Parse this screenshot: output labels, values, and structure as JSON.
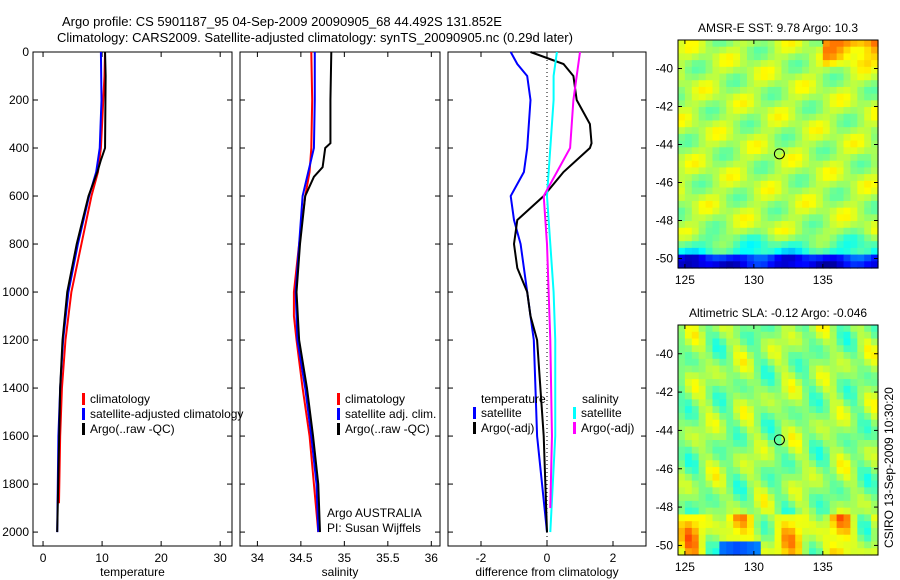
{
  "title_line1": "Argo profile: CS 5901187_95 04-Sep-2009 20090905_68 44.492S 131.852E",
  "title_line2": "Climatology: CARS2009. Satellite-adjusted climatology: synTS_20090905.nc (0.29d later)",
  "side_label": "CSIRO 13-Sep-2009 10:30:20",
  "colors": {
    "red": "#ff0000",
    "blue": "#0000ff",
    "black": "#000000",
    "cyan": "#00ffff",
    "magenta": "#ff00ff"
  },
  "chart_data": [
    {
      "type": "line",
      "xlabel": "temperature",
      "ylabel": "",
      "xlim": [
        -1.7,
        32
      ],
      "ylim": [
        2058,
        0
      ],
      "xticks": [
        0,
        10,
        20,
        30
      ],
      "yticks": [
        0,
        200,
        400,
        600,
        800,
        1000,
        1200,
        1400,
        1600,
        1800,
        2000
      ],
      "legend": [
        "climatology",
        "satellite-adjusted climatology",
        "Argo(..raw -QC)"
      ],
      "series": [
        {
          "name": "climatology",
          "color": "#ff0000",
          "x": [
            10.5,
            10.4,
            10.2,
            9.8,
            9.3,
            8.2,
            6.5,
            4.8,
            3.8,
            3.2,
            2.9,
            2.7
          ],
          "y": [
            0,
            100,
            200,
            400,
            500,
            600,
            800,
            1000,
            1200,
            1400,
            1600,
            1880
          ]
        },
        {
          "name": "satellite-adjusted climatology",
          "color": "#0000ff",
          "x": [
            9.8,
            9.9,
            9.6,
            9.0,
            7.8,
            5.9,
            4.3,
            3.4,
            2.9,
            2.6,
            2.4
          ],
          "y": [
            0,
            200,
            400,
            500,
            600,
            800,
            1000,
            1200,
            1400,
            1600,
            2000
          ]
        },
        {
          "name": "Argo(..raw -QC)",
          "color": "#000000",
          "x": [
            10.5,
            10.6,
            10.5,
            9.8,
            9.2,
            7.7,
            5.7,
            4.1,
            3.3,
            2.9,
            2.4
          ],
          "y": [
            0,
            100,
            400,
            450,
            500,
            600,
            800,
            1000,
            1200,
            1400,
            2000
          ]
        }
      ]
    },
    {
      "type": "line",
      "xlabel": "salinity",
      "xlim": [
        33.8,
        36.1
      ],
      "ylim": [
        2058,
        0
      ],
      "xticks": [
        34,
        34.5,
        35,
        35.5,
        36
      ],
      "xticklabels": [
        "34",
        "34.5",
        "35",
        "35.5",
        "36"
      ],
      "legend": [
        "climatology",
        "satellite adj. clim.",
        "Argo(..raw -QC)"
      ],
      "annotation": [
        "Argo AUSTRALIA",
        "PI: Susan Wijffels"
      ],
      "series": [
        {
          "name": "climatology",
          "color": "#ff0000",
          "x": [
            34.62,
            34.63,
            34.62,
            34.6,
            34.55,
            34.48,
            34.42,
            34.42,
            34.45,
            34.52,
            34.6,
            34.65,
            34.7
          ],
          "y": [
            0,
            200,
            400,
            500,
            600,
            800,
            1000,
            1100,
            1200,
            1400,
            1600,
            1800,
            2000
          ]
        },
        {
          "name": "satellite adj. clim.",
          "color": "#0000ff",
          "x": [
            34.66,
            34.66,
            34.65,
            34.52,
            34.48,
            34.44,
            34.46,
            34.55,
            34.62,
            34.68,
            34.7
          ],
          "y": [
            0,
            200,
            400,
            600,
            800,
            1000,
            1200,
            1400,
            1600,
            1800,
            2000
          ]
        },
        {
          "name": "Argo(..raw -QC)",
          "color": "#000000",
          "x": [
            34.85,
            34.84,
            34.84,
            34.78,
            34.75,
            34.65,
            34.55,
            34.49,
            34.45,
            34.48,
            34.57,
            34.64,
            34.7,
            34.72
          ],
          "y": [
            0,
            200,
            380,
            400,
            480,
            520,
            600,
            800,
            1000,
            1200,
            1400,
            1600,
            1800,
            2000
          ]
        }
      ]
    },
    {
      "type": "line",
      "xlabel": "difference from climatology",
      "xlim": [
        -3,
        3
      ],
      "ylim": [
        2058,
        0
      ],
      "xticks": [
        -2,
        0,
        2
      ],
      "xticklabels": [
        "-2",
        "0",
        "2"
      ],
      "legend_headers": [
        "temperature",
        "salinity"
      ],
      "legend": [
        "satellite",
        "Argo(-adj)",
        "satellite",
        "Argo(-adj)"
      ],
      "series": [
        {
          "name": "temperature satellite",
          "color": "#0000ff",
          "x": [
            -1.1,
            -0.9,
            -0.6,
            -0.5,
            -0.6,
            -0.7,
            -1.1,
            -1.0,
            -0.8,
            -0.6,
            -0.4,
            -0.3,
            0
          ],
          "y": [
            0,
            50,
            100,
            200,
            400,
            500,
            600,
            700,
            800,
            1000,
            1200,
            1600,
            2000
          ]
        },
        {
          "name": "temperature Argo(-adj)",
          "color": "#000000",
          "x": [
            -0.5,
            0.5,
            0.8,
            0.9,
            1.3,
            1.35,
            1.3,
            0.5,
            -0.1,
            -0.9,
            -1.0,
            -0.9,
            -0.6,
            -0.5,
            -0.3,
            -0.1,
            0
          ],
          "y": [
            0,
            50,
            100,
            200,
            300,
            380,
            400,
            500,
            600,
            700,
            800,
            900,
            1000,
            1100,
            1200,
            1600,
            2000
          ]
        },
        {
          "name": "salinity satellite",
          "color": "#00ffff",
          "x": [
            0.3,
            0.2,
            0.2,
            0.1,
            0.0,
            0.1,
            0.2,
            0.25,
            0.25,
            0.1
          ],
          "y": [
            0,
            100,
            200,
            400,
            600,
            800,
            1000,
            1200,
            1600,
            2000
          ]
        },
        {
          "name": "salinity Argo(-adj)",
          "color": "#ff00ff",
          "x": [
            1.0,
            0.9,
            0.8,
            0.7,
            0.3,
            -0.1,
            0.0,
            0.1,
            0.15,
            0.1
          ],
          "y": [
            0,
            100,
            200,
            400,
            500,
            600,
            800,
            1200,
            1600,
            1900
          ]
        }
      ]
    },
    {
      "type": "heatmap",
      "title": "AMSR-E SST: 9.78 Argo: 10.3",
      "xlim": [
        124.5,
        139
      ],
      "ylim": [
        -50.5,
        -38.5
      ],
      "xticks": [
        125,
        130,
        135
      ],
      "yticks": [
        -40,
        -42,
        -44,
        -46,
        -48,
        -50
      ],
      "marker": [
        131.852,
        -44.492
      ]
    },
    {
      "type": "heatmap",
      "title": "Altimetric SLA: -0.12 Argo: -0.046",
      "xlim": [
        124.5,
        139
      ],
      "ylim": [
        -50.5,
        -38.5
      ],
      "xticks": [
        125,
        130,
        135
      ],
      "yticks": [
        -40,
        -42,
        -44,
        -46,
        -48,
        -50
      ],
      "marker": [
        131.852,
        -44.492
      ]
    }
  ]
}
